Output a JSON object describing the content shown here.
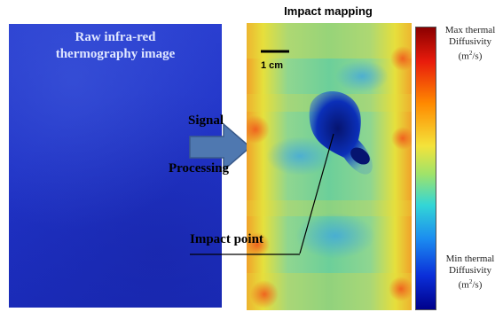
{
  "raw_panel": {
    "title_lines": [
      "Raw infra-red",
      "thermography image"
    ]
  },
  "processing": {
    "word1": "Signal",
    "word2": "Processing"
  },
  "impact_map": {
    "title": "Impact mapping",
    "scale_bar": "1 cm",
    "pointer_label": "Impact point"
  },
  "colorbar": {
    "max_line1": "Max thermal",
    "max_line2": "Diffusivity",
    "min_line1": "Min thermal",
    "min_line2": "Diffusivity",
    "unit_base": "(m",
    "unit_exp": "2",
    "unit_tail": "/s)"
  },
  "colors": {
    "raw_blue": "#1f32c4",
    "arrow_fill": "#4f78b0",
    "map_green": "#6ccf8a",
    "map_yellow": "#f2e437",
    "map_hot": "#f0581c",
    "impact_dark": "#0a1f90"
  }
}
